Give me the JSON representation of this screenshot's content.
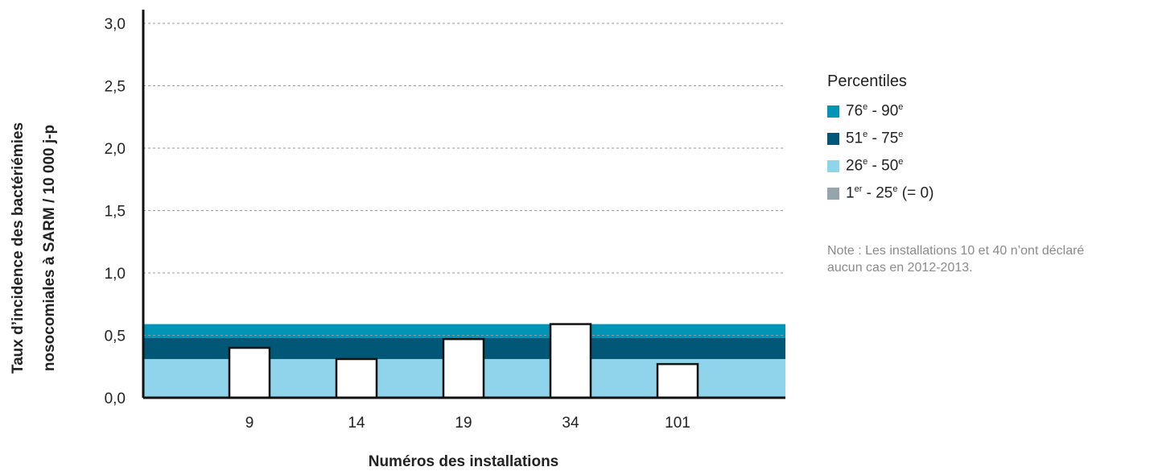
{
  "chart_data": {
    "type": "bar",
    "categories": [
      "9",
      "14",
      "19",
      "34",
      "101"
    ],
    "values": [
      0.4,
      0.31,
      0.47,
      0.59,
      0.27
    ],
    "ylim": [
      0,
      3.0
    ],
    "yticks": [
      "0,0",
      "0,5",
      "1,0",
      "1,5",
      "2,0",
      "2,5",
      "3,0"
    ],
    "ytick_values": [
      0,
      0.5,
      1.0,
      1.5,
      2.0,
      2.5,
      3.0
    ],
    "ylabel_line1": "Taux d’incidence des bactériémies",
    "ylabel_line2": "nosocomiales à SARM / 10 000 j-p",
    "xlabel": "Numéros des installations",
    "grid": "horizontal-dashed",
    "percentile_bands": [
      {
        "name": "1er - 25e (= 0)",
        "from": 0,
        "to": 0,
        "color": "#95a5ad"
      },
      {
        "name": "26e - 50e",
        "from": 0,
        "to": 0.31,
        "color": "#8fd4ea"
      },
      {
        "name": "51e - 75e",
        "from": 0.31,
        "to": 0.48,
        "color": "#005876"
      },
      {
        "name": "76e - 90e",
        "from": 0.48,
        "to": 0.59,
        "color": "#0095b7"
      }
    ],
    "bar_color": "#ffffff",
    "bar_edge_color": "#111111"
  },
  "legend": {
    "title": "Percentiles",
    "items": [
      {
        "base1": "76",
        "sup1": "e",
        "mid": " - 90",
        "sup2": "e",
        "tail": "",
        "color": "#0095b7"
      },
      {
        "base1": "51",
        "sup1": "e",
        "mid": " - 75",
        "sup2": "e",
        "tail": "",
        "color": "#005876"
      },
      {
        "base1": "26",
        "sup1": "e",
        "mid": " - 50",
        "sup2": "e",
        "tail": "",
        "color": "#8fd4ea"
      },
      {
        "base1": "1",
        "sup1": "er",
        "mid": " - 25",
        "sup2": "e",
        "tail": " (= 0)",
        "color": "#95a5ad"
      }
    ]
  },
  "note": {
    "line1": "Note : Les installations 10 et 40 n’ont déclaré",
    "line2": "aucun cas en 2012-2013."
  }
}
